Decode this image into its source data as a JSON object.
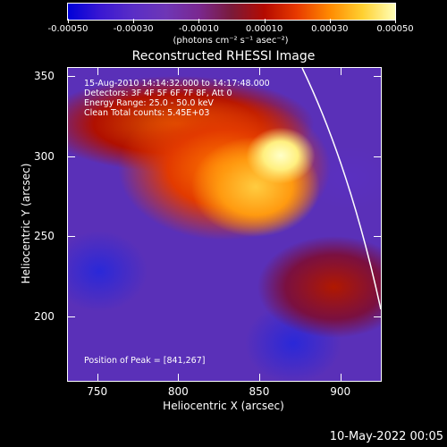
{
  "colorbar": {
    "tick_labels": [
      "-0.00050",
      "-0.00030",
      "-0.00010",
      "0.00010",
      "0.00030",
      "0.00050"
    ],
    "unit": "(photons cm⁻² s⁻¹ asec⁻²)"
  },
  "title": "Reconstructed RHESSI Image",
  "annotations": {
    "time_range": "15-Aug-2010 14:14:32.000 to 14:17:48.000",
    "detectors": "Detectors: 3F 4F 5F 6F 7F 8F, Att 0",
    "energy_range": "Energy Range: 25.0 - 50.0 keV",
    "clean": "Clean     Total counts: 5.45E+03",
    "peak": "Position of Peak = [841,267]"
  },
  "axes": {
    "x_title": "Heliocentric X (arcsec)",
    "y_title": "Heliocentric Y (arcsec)",
    "x_ticks": [
      "750",
      "800",
      "850",
      "900"
    ],
    "y_ticks": [
      "200",
      "250",
      "300",
      "350"
    ],
    "xlim": [
      732,
      925
    ],
    "ylim": [
      160,
      355
    ]
  },
  "timestamp": "10-May-2022 00:05"
}
